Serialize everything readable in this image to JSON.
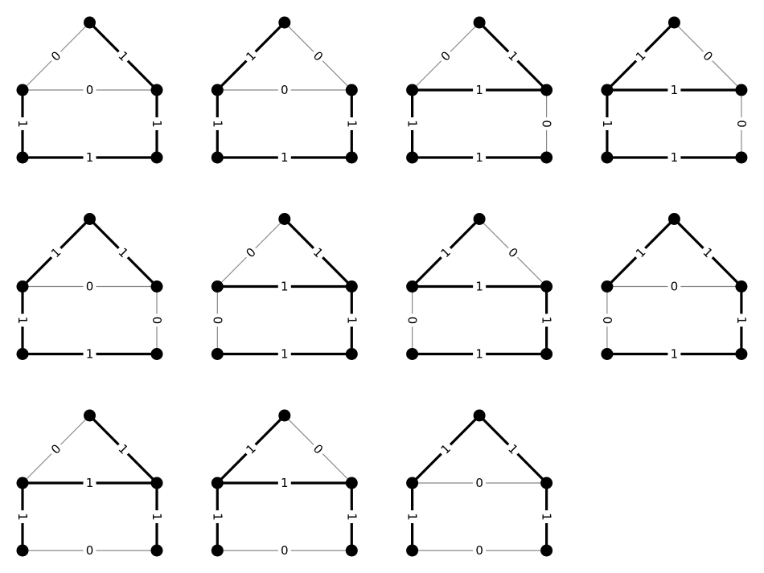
{
  "diagram": {
    "style": {
      "edge_on_color": "#000000",
      "edge_off_color": "#888888",
      "node_color": "#000000",
      "background": "#ffffff"
    },
    "graphs": [
      {
        "roof_left": "0",
        "roof_right": "1",
        "middle": "0",
        "left_wall": "1",
        "right_wall": "1",
        "bottom": "1"
      },
      {
        "roof_left": "1",
        "roof_right": "0",
        "middle": "0",
        "left_wall": "1",
        "right_wall": "1",
        "bottom": "1"
      },
      {
        "roof_left": "0",
        "roof_right": "1",
        "middle": "1",
        "left_wall": "1",
        "right_wall": "0",
        "bottom": "1"
      },
      {
        "roof_left": "1",
        "roof_right": "0",
        "middle": "1",
        "left_wall": "1",
        "right_wall": "0",
        "bottom": "1"
      },
      {
        "roof_left": "1",
        "roof_right": "1",
        "middle": "0",
        "left_wall": "1",
        "right_wall": "0",
        "bottom": "1"
      },
      {
        "roof_left": "0",
        "roof_right": "1",
        "middle": "1",
        "left_wall": "0",
        "right_wall": "1",
        "bottom": "1"
      },
      {
        "roof_left": "1",
        "roof_right": "0",
        "middle": "1",
        "left_wall": "0",
        "right_wall": "1",
        "bottom": "1"
      },
      {
        "roof_left": "1",
        "roof_right": "1",
        "middle": "0",
        "left_wall": "0",
        "right_wall": "1",
        "bottom": "1"
      },
      {
        "roof_left": "0",
        "roof_right": "1",
        "middle": "1",
        "left_wall": "1",
        "right_wall": "1",
        "bottom": "0"
      },
      {
        "roof_left": "1",
        "roof_right": "0",
        "middle": "1",
        "left_wall": "1",
        "right_wall": "1",
        "bottom": "0"
      },
      {
        "roof_left": "1",
        "roof_right": "1",
        "middle": "0",
        "left_wall": "1",
        "right_wall": "1",
        "bottom": "0"
      }
    ]
  }
}
